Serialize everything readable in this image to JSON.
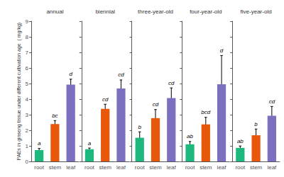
{
  "chart_data": [
    {
      "type": "bar",
      "title": "annual",
      "ylabel": "PAEs in ginseng tissue under different cultivation age  ( mg/kg)",
      "categories": [
        "root",
        "stem",
        "leaf"
      ],
      "values": [
        0.73,
        2.4,
        4.93
      ],
      "errors": [
        0.1,
        0.22,
        0.35
      ],
      "annotations": [
        "a",
        "bc",
        "d"
      ],
      "colors": [
        "#1db87e",
        "#e8580a",
        "#7b70c0"
      ],
      "ylim": [
        0,
        9
      ],
      "yticks": [
        0,
        1,
        2,
        3,
        4,
        5,
        6,
        7,
        8,
        9
      ],
      "grid": false
    },
    {
      "type": "bar",
      "title": "biennial",
      "categories": [
        "root",
        "stem",
        "leaf"
      ],
      "values": [
        0.78,
        3.37,
        4.68
      ],
      "errors": [
        0.08,
        0.3,
        0.55
      ],
      "annotations": [
        "a",
        "cd",
        "cd"
      ],
      "colors": [
        "#1db87e",
        "#e8580a",
        "#7b70c0"
      ],
      "ylim": [
        0,
        9
      ],
      "yticks": [
        0,
        1,
        2,
        3,
        4,
        5,
        6,
        7,
        8,
        9
      ],
      "grid": false,
      "tick_labels": "x"
    },
    {
      "type": "bar",
      "title": "three-year-old",
      "categories": [
        "root",
        "stem",
        "leaf"
      ],
      "values": [
        1.52,
        2.78,
        4.07
      ],
      "errors": [
        0.38,
        0.55,
        0.65
      ],
      "annotations": [
        "b",
        "cd",
        "cd"
      ],
      "colors": [
        "#1db87e",
        "#e8580a",
        "#7b70c0"
      ],
      "ylim": [
        0,
        9
      ],
      "yticks": [
        0,
        1,
        2,
        3,
        4,
        5,
        6,
        7,
        8,
        9
      ],
      "grid": false,
      "tick_labels": "x"
    },
    {
      "type": "bar",
      "title": "four-year-old",
      "categories": [
        "root",
        "stem",
        "leaf"
      ],
      "values": [
        1.1,
        2.38,
        4.95
      ],
      "errors": [
        0.18,
        0.45,
        1.85
      ],
      "annotations": [
        "ab",
        "bcd",
        "d"
      ],
      "colors": [
        "#1db87e",
        "#e8580a",
        "#7b70c0"
      ],
      "ylim": [
        0,
        9
      ],
      "yticks": [
        0,
        1,
        2,
        3,
        4,
        5,
        6,
        7,
        8,
        9
      ],
      "grid": false,
      "tick_labels": "x"
    },
    {
      "type": "bar",
      "title": "five-year-old",
      "categories": [
        "root",
        "stem",
        "leaf"
      ],
      "values": [
        0.87,
        1.68,
        2.93
      ],
      "errors": [
        0.12,
        0.4,
        0.6
      ],
      "annotations": [
        "ab",
        "b",
        "cd"
      ],
      "colors": [
        "#1db87e",
        "#e8580a",
        "#7b70c0"
      ],
      "ylim": [
        0,
        9
      ],
      "yticks": [
        0,
        1,
        2,
        3,
        4,
        5,
        6,
        7,
        8,
        9
      ],
      "grid": false,
      "tick_labels": "x"
    }
  ]
}
